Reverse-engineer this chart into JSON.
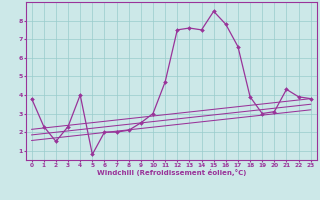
{
  "xlabel": "Windchill (Refroidissement éolien,°C)",
  "background_color": "#cce8e8",
  "line_color": "#993399",
  "grid_color": "#99cccc",
  "xlim": [
    -0.5,
    23.5
  ],
  "ylim": [
    0.5,
    9.0
  ],
  "xticks": [
    0,
    1,
    2,
    3,
    4,
    5,
    6,
    7,
    8,
    9,
    10,
    11,
    12,
    13,
    14,
    15,
    16,
    17,
    18,
    19,
    20,
    21,
    22,
    23
  ],
  "yticks": [
    1,
    2,
    3,
    4,
    5,
    6,
    7,
    8
  ],
  "series1_x": [
    0,
    1,
    2,
    3,
    4,
    5,
    6,
    7,
    8,
    9,
    10,
    11,
    12,
    13,
    14,
    15,
    16,
    17,
    18,
    19,
    20,
    21,
    22,
    23
  ],
  "series1_y": [
    3.8,
    2.3,
    1.5,
    2.3,
    4.0,
    0.8,
    2.0,
    2.0,
    2.1,
    2.5,
    3.0,
    4.7,
    7.5,
    7.6,
    7.5,
    8.5,
    7.8,
    6.6,
    3.9,
    3.0,
    3.1,
    4.3,
    3.9,
    3.8
  ],
  "trend_lines": [
    {
      "x0": 0,
      "x1": 23,
      "y0": 1.55,
      "y1": 3.2
    },
    {
      "x0": 0,
      "x1": 23,
      "y0": 1.85,
      "y1": 3.5
    },
    {
      "x0": 0,
      "x1": 23,
      "y0": 2.15,
      "y1": 3.8
    }
  ]
}
